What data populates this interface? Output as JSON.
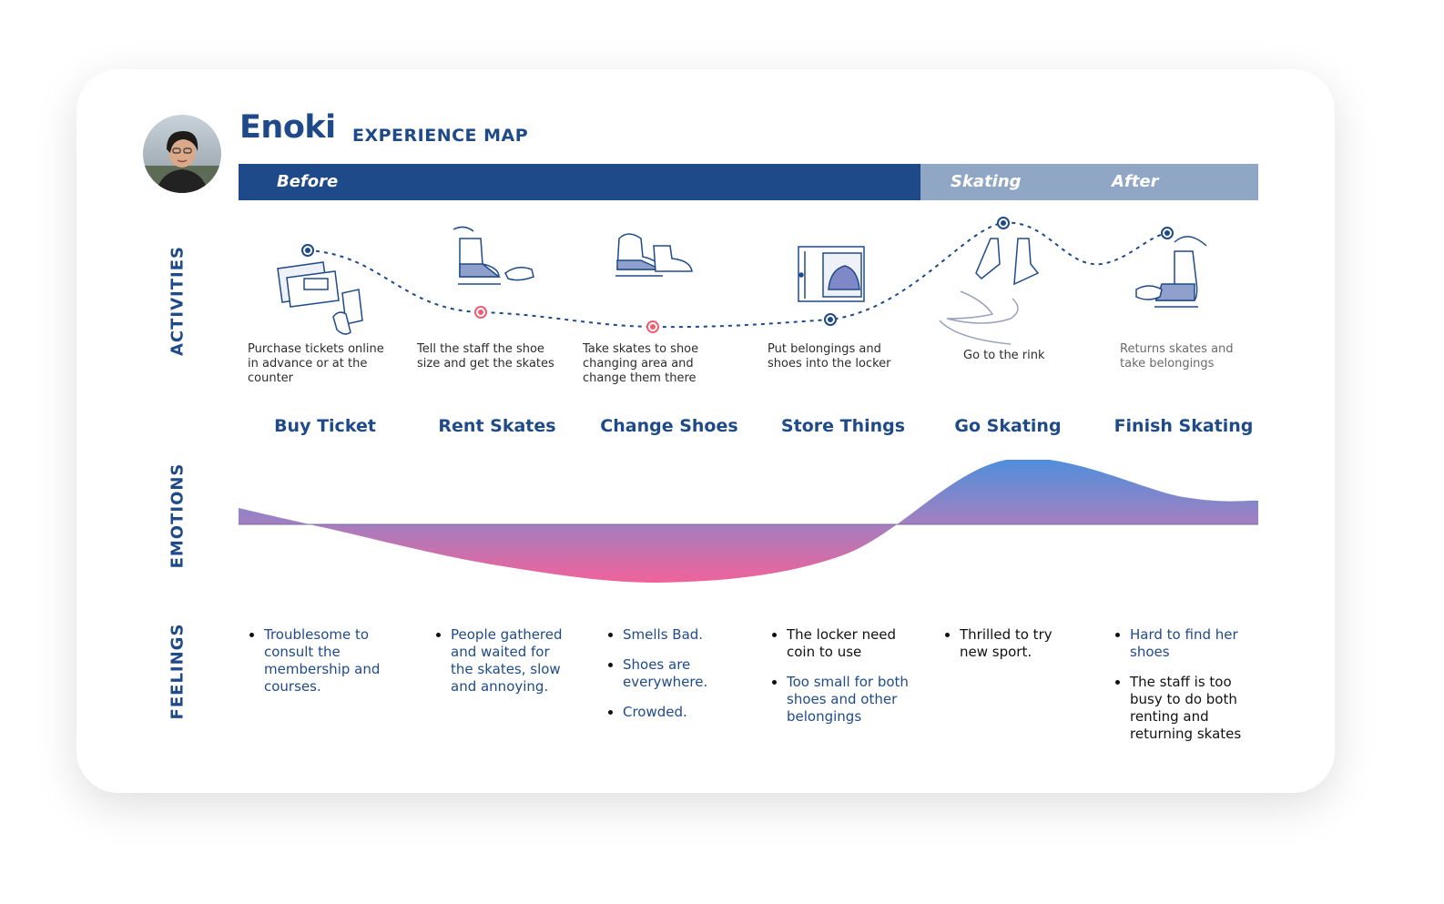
{
  "header": {
    "title": "Enoki",
    "subtitle": "EXPERIENCE MAP"
  },
  "phases": [
    {
      "label": "Before"
    },
    {
      "label": "Skating"
    },
    {
      "label": "After"
    }
  ],
  "row_labels": {
    "activities": "ACTIVITIES",
    "emotions": "EMOTIONS",
    "feelings": "FEELINGS"
  },
  "stages": [
    {
      "name": "Buy Ticket",
      "activity": "Purchase tickets online in advance or at the counter",
      "icon": "ticket-phone-icon",
      "emotion": -0.05,
      "feelings": [
        {
          "text": "Troublesome to consult the membership and courses.",
          "tone": "blue"
        }
      ]
    },
    {
      "name": "Rent Skates",
      "activity": "Tell the staff the shoe size and get the skates",
      "icon": "skates-handover-icon",
      "emotion": -0.6,
      "feelings": [
        {
          "text": "People gathered  and waited for the skates, slow and annoying.",
          "tone": "blue"
        }
      ]
    },
    {
      "name": "Change Shoes",
      "activity": "Take skates to shoe changing area and change them there",
      "icon": "change-shoes-icon",
      "emotion": -0.85,
      "feelings": [
        {
          "text": "Smells Bad.",
          "tone": "blue"
        },
        {
          "text": "Shoes are everywhere.",
          "tone": "blue"
        },
        {
          "text": "Crowded.",
          "tone": "blue"
        }
      ]
    },
    {
      "name": "Store Things",
      "activity": "Put belongings and shoes into the locker",
      "icon": "locker-icon",
      "emotion": -0.45,
      "feelings": [
        {
          "text": "The locker need coin to use",
          "tone": "black"
        },
        {
          "text": "Too small for both shoes and other belongings",
          "tone": "blue"
        }
      ]
    },
    {
      "name": "Go Skating",
      "activity": "Go to the rink",
      "icon": "skating-icon",
      "emotion": 0.95,
      "feelings": [
        {
          "text": "Thrilled to try new sport.",
          "tone": "black"
        }
      ]
    },
    {
      "name": "Finish Skating",
      "activity": "Returns skates and take belongings",
      "icon": "return-skates-icon",
      "emotion": 0.4,
      "feelings": [
        {
          "text": "Hard to find her shoes",
          "tone": "blue"
        },
        {
          "text": "The staff is too busy to do both renting and returning skates",
          "tone": "black"
        }
      ]
    }
  ],
  "colors": {
    "primary": "#1f4a8a",
    "phase_light": "#8fa6c5",
    "positive": "#4d8fdc",
    "neutral": "#9a82c4",
    "negative": "#f0629a",
    "pain_point": "#ef5d73"
  }
}
